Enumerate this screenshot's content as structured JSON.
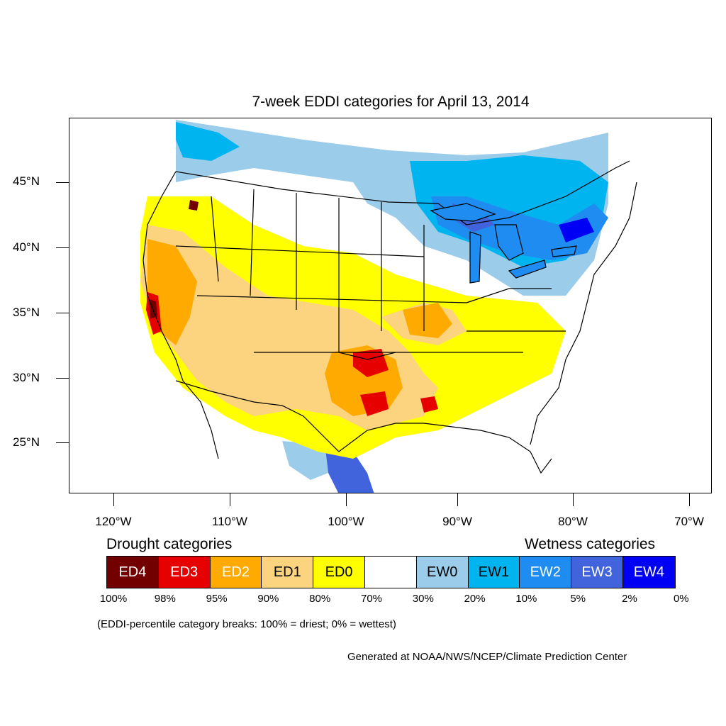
{
  "title": "7-week EDDI categories for April 13, 2014",
  "lat_labels": [
    "45°N",
    "40°N",
    "35°N",
    "30°N",
    "25°N"
  ],
  "lon_labels": [
    "120°W",
    "110°W",
    "100°W",
    "90°W",
    "80°W",
    "70°W"
  ],
  "legend": {
    "drought_heading": "Drought categories",
    "wetness_heading": "Wetness categories",
    "categories": [
      {
        "label": "ED4",
        "color": "#730000",
        "text_color": "#ffffff"
      },
      {
        "label": "ED3",
        "color": "#e60000",
        "text_color": "#ffffff"
      },
      {
        "label": "ED2",
        "color": "#ffaa00",
        "text_color": "#ffffff"
      },
      {
        "label": "ED1",
        "color": "#fcd37f",
        "text_color": "#000000"
      },
      {
        "label": "ED0",
        "color": "#ffff00",
        "text_color": "#000000"
      },
      {
        "label": "",
        "color": "#ffffff",
        "text_color": "#000000"
      },
      {
        "label": "EW0",
        "color": "#9bcdeb",
        "text_color": "#000000"
      },
      {
        "label": "EW1",
        "color": "#00b4f0",
        "text_color": "#000000"
      },
      {
        "label": "EW2",
        "color": "#1e8cf0",
        "text_color": "#ffffff"
      },
      {
        "label": "EW3",
        "color": "#4164dc",
        "text_color": "#ffffff"
      },
      {
        "label": "EW4",
        "color": "#0000f5",
        "text_color": "#ffffff"
      }
    ],
    "breaks": [
      "100%",
      "98%",
      "95%",
      "90%",
      "80%",
      "70%",
      "30%",
      "20%",
      "10%",
      "5%",
      "2%",
      "0%"
    ]
  },
  "note": "(EDDI-percentile category breaks: 100% = driest; 0% = wettest)",
  "credit": "Generated at NOAA/NWS/NCEP/Climate Prediction Center"
}
